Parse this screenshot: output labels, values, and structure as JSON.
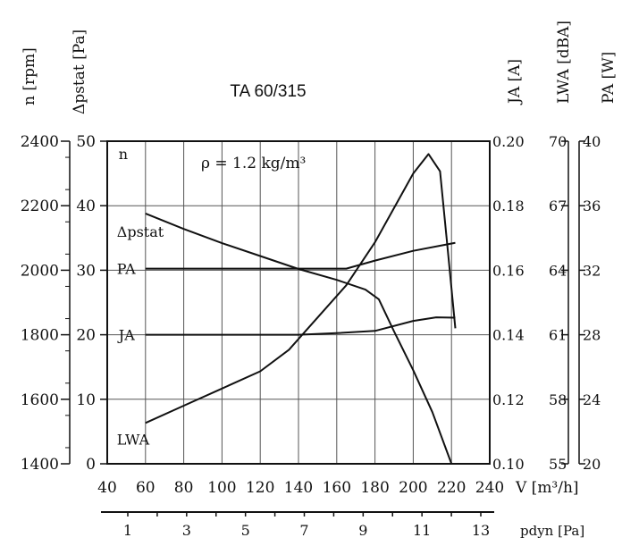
{
  "chart_data": {
    "type": "line",
    "title": "TA 60/315",
    "annotation": "ρ = 1.2 kg/m³",
    "grid": true,
    "x": {
      "label": "V [m³/h]",
      "lim": [
        40,
        240
      ],
      "ticks": [
        40,
        60,
        80,
        100,
        120,
        140,
        160,
        180,
        200,
        220,
        240
      ]
    },
    "x2": {
      "label": "pdyn [Pa]",
      "ticks": [
        1,
        3,
        5,
        7,
        9,
        11,
        13
      ]
    },
    "axes": {
      "n": {
        "label": "n [rpm]",
        "lim": [
          1400,
          2400
        ],
        "ticks": [
          1400,
          1600,
          1800,
          2000,
          2200,
          2400
        ]
      },
      "dp": {
        "label": "Δpstat [Pa]",
        "lim": [
          0,
          50
        ],
        "ticks": [
          0,
          10,
          20,
          30,
          40,
          50
        ]
      },
      "ja": {
        "label": "JA [A]",
        "lim": [
          0.1,
          0.2
        ],
        "ticks": [
          "0.10",
          "0.12",
          "0.14",
          "0.16",
          "0.18",
          "0.20"
        ]
      },
      "lwa": {
        "label": "LWA [dBA]",
        "lim": [
          55,
          70
        ],
        "ticks": [
          55,
          58,
          61,
          64,
          67,
          70
        ]
      },
      "pa": {
        "label": "PA [W]",
        "lim": [
          20,
          40
        ],
        "ticks": [
          20,
          24,
          28,
          32,
          36,
          40
        ]
      }
    },
    "series": [
      {
        "name": "n",
        "axis": "n",
        "points": [
          [
            60,
            2400
          ],
          [
            212,
            2400
          ]
        ]
      },
      {
        "name": "Δpstat",
        "axis": "dp",
        "points": [
          [
            60,
            38.8
          ],
          [
            80,
            36.4
          ],
          [
            100,
            34.2
          ],
          [
            120,
            32.2
          ],
          [
            140,
            30.2
          ],
          [
            160,
            28.5
          ],
          [
            175,
            27.0
          ],
          [
            182,
            25.5
          ],
          [
            190,
            20.5
          ],
          [
            200,
            14.5
          ],
          [
            210,
            8.0
          ],
          [
            220,
            0
          ]
        ]
      },
      {
        "name": "PA",
        "axis": "pa",
        "points": [
          [
            60,
            32.1
          ],
          [
            100,
            32.1
          ],
          [
            140,
            32.1
          ],
          [
            165,
            32.1
          ],
          [
            180,
            32.6
          ],
          [
            200,
            33.2
          ],
          [
            222,
            33.7
          ]
        ]
      },
      {
        "name": "JA",
        "axis": "ja",
        "points": [
          [
            60,
            0.14
          ],
          [
            140,
            0.14
          ],
          [
            160,
            0.1405
          ],
          [
            180,
            0.1412
          ],
          [
            200,
            0.1443
          ],
          [
            212,
            0.1454
          ],
          [
            222,
            0.1453
          ]
        ]
      },
      {
        "name": "LWA",
        "axis": "lwa",
        "points": [
          [
            60,
            56.9
          ],
          [
            80,
            57.7
          ],
          [
            100,
            58.5
          ],
          [
            120,
            59.3
          ],
          [
            135,
            60.3
          ],
          [
            150,
            61.8
          ],
          [
            165,
            63.3
          ],
          [
            180,
            65.3
          ],
          [
            190,
            66.9
          ],
          [
            200,
            68.5
          ],
          [
            208,
            69.4
          ],
          [
            214,
            68.6
          ],
          [
            218,
            65.0
          ],
          [
            222,
            61.3
          ]
        ]
      }
    ],
    "series_labels": [
      {
        "text": "n",
        "series": "n"
      },
      {
        "text": "Δpstat",
        "series": "Δpstat"
      },
      {
        "text": "PA",
        "series": "PA"
      },
      {
        "text": "JA",
        "series": "JA"
      },
      {
        "text": "LWA",
        "series": "LWA"
      }
    ]
  }
}
